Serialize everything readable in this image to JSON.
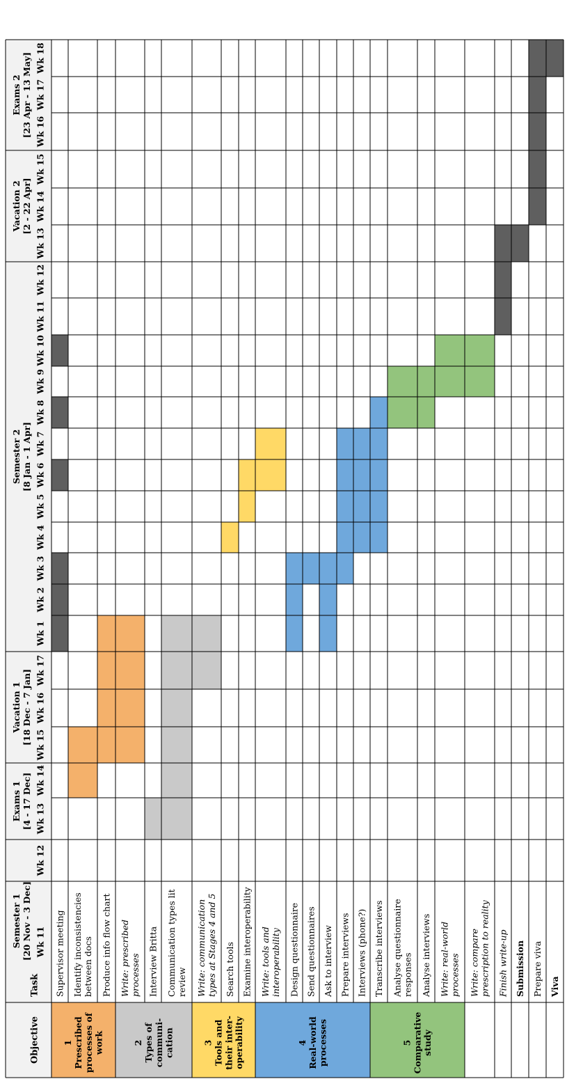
{
  "colors": {
    "line": "#000000",
    "header_bg": "#f2f2f2",
    "obj1": "#f4b16b",
    "obj2": "#c9c9c9",
    "obj3": "#ffd966",
    "obj4": "#6fa8dc",
    "obj5": "#93c47d",
    "milestone": "#5f5f5f"
  },
  "headers": {
    "objective": "Objective",
    "task": "Task"
  },
  "weeks": [
    "Wk 11",
    "Wk 12",
    "Wk 13",
    "Wk 14",
    "Wk 15",
    "Wk 16",
    "Wk 17",
    "Wk 1",
    "Wk 2",
    "Wk 3",
    "Wk 4",
    "Wk 5",
    "Wk 6",
    "Wk 7",
    "Wk 8",
    "Wk 9",
    "Wk 10",
    "Wk 11",
    "Wk 12",
    "Wk 13",
    "Wk 14",
    "Wk 15",
    "Wk 16",
    "Wk 17",
    "Wk 18"
  ],
  "periods": [
    {
      "name": "Semester 1",
      "dates": "[20 Nov - 3 Dec]",
      "start": 0,
      "end": 1
    },
    {
      "name": "Exams 1",
      "dates": "[4 - 17 Dec]",
      "start": 2,
      "end": 3
    },
    {
      "name": "Vacation 1",
      "dates": "[18 Dec - 7 Jan]",
      "start": 4,
      "end": 6
    },
    {
      "name": "Semester 2",
      "dates": "[8 Jan - 1 Apr]",
      "start": 7,
      "end": 18
    },
    {
      "name": "Vacation 2",
      "dates": "[2 - 22 Apr]",
      "start": 19,
      "end": 21
    },
    {
      "name": "Exams 2",
      "dates": "[23 Apr - 13 May]",
      "start": 22,
      "end": 24
    }
  ],
  "objectives": [
    {
      "number": "1",
      "lines": [
        "Prescribed",
        "processes of",
        "work"
      ],
      "color_key": "obj1",
      "start_row": 1,
      "end_row": 3
    },
    {
      "number": "2",
      "lines": [
        "Types of",
        "communi-",
        "cation"
      ],
      "color_key": "obj2",
      "start_row": 4,
      "end_row": 6
    },
    {
      "number": "3",
      "lines": [
        "Tools and",
        "their inter-",
        "operability"
      ],
      "color_key": "obj3",
      "start_row": 7,
      "end_row": 9
    },
    {
      "number": "4",
      "lines": [
        "Real-world",
        "processes"
      ],
      "color_key": "obj4",
      "start_row": 10,
      "end_row": 15
    },
    {
      "number": "5",
      "lines": [
        "Comparative",
        "study"
      ],
      "color_key": "obj5",
      "start_row": 16,
      "end_row": 19
    }
  ],
  "tasks": [
    {
      "lines": [
        "Supervisor meeting"
      ],
      "style": "normal",
      "color_key": "milestone",
      "weeks": [
        7,
        8,
        9,
        12,
        14,
        16
      ]
    },
    {
      "lines": [
        "Identify inconsistencies",
        "between docs"
      ],
      "style": "normal",
      "color_key": "obj1",
      "weeks": [
        3,
        4
      ]
    },
    {
      "lines": [
        "Produce info flow chart"
      ],
      "style": "normal",
      "color_key": "obj1",
      "weeks": [
        4,
        5,
        6,
        7
      ]
    },
    {
      "lines": [
        "Write: prescribed",
        "processes"
      ],
      "style": "italic",
      "color_key": "obj1",
      "weeks": [
        4,
        5,
        6,
        7
      ]
    },
    {
      "lines": [
        "Interview Britta"
      ],
      "style": "normal",
      "color_key": "obj2",
      "weeks": [
        2
      ]
    },
    {
      "lines": [
        "Communication types lit",
        "review"
      ],
      "style": "normal",
      "color_key": "obj2",
      "weeks": [
        2,
        3,
        4,
        5,
        6,
        7
      ]
    },
    {
      "lines": [
        "Write: communication",
        "types at Stages 4 and 5"
      ],
      "style": "italic",
      "color_key": "obj2",
      "weeks": [
        6,
        7
      ]
    },
    {
      "lines": [
        "Search tools"
      ],
      "style": "normal",
      "color_key": "obj3",
      "weeks": [
        10
      ]
    },
    {
      "lines": [
        "Examine interoperability"
      ],
      "style": "normal",
      "color_key": "obj3",
      "weeks": [
        11,
        12
      ]
    },
    {
      "lines": [
        "Write: tools and",
        "interoperability"
      ],
      "style": "italic",
      "color_key": "obj3",
      "weeks": [
        12,
        13
      ]
    },
    {
      "lines": [
        "Design questionnaire"
      ],
      "style": "normal",
      "color_key": "obj4",
      "weeks": [
        7,
        8,
        9
      ]
    },
    {
      "lines": [
        "Send questionnaires"
      ],
      "style": "normal",
      "color_key": "obj4",
      "weeks": [
        9
      ]
    },
    {
      "lines": [
        "Ask to interview"
      ],
      "style": "normal",
      "color_key": "obj4",
      "weeks": [
        7,
        8,
        9
      ]
    },
    {
      "lines": [
        "Prepare interviews"
      ],
      "style": "normal",
      "color_key": "obj4",
      "weeks": [
        9,
        10,
        11,
        12,
        13
      ]
    },
    {
      "lines": [
        "Interviews (phone?)"
      ],
      "style": "normal",
      "color_key": "obj4",
      "weeks": [
        10,
        11,
        12,
        13
      ]
    },
    {
      "lines": [
        "Transcribe interviews"
      ],
      "style": "normal",
      "color_key": "obj4",
      "weeks": [
        10,
        11,
        12,
        13,
        14
      ]
    },
    {
      "lines": [
        "Analyse questionnaire",
        "responses"
      ],
      "style": "normal",
      "color_key": "obj5",
      "weeks": [
        14,
        15
      ]
    },
    {
      "lines": [
        "Analyse interviews"
      ],
      "style": "normal",
      "color_key": "obj5",
      "weeks": [
        14,
        15
      ]
    },
    {
      "lines": [
        "Write: real-world",
        "processes"
      ],
      "style": "italic",
      "color_key": "obj5",
      "weeks": [
        15,
        16
      ]
    },
    {
      "lines": [
        "Write: compare",
        "prescription to reality"
      ],
      "style": "italic",
      "color_key": "obj5",
      "weeks": [
        15,
        16
      ]
    },
    {
      "lines": [
        "Finish write-up"
      ],
      "style": "italic",
      "color_key": "milestone",
      "weeks": [
        17,
        18,
        19
      ]
    },
    {
      "lines": [
        "Submission"
      ],
      "style": "bold",
      "color_key": "milestone",
      "weeks": [
        19
      ]
    },
    {
      "lines": [
        "Prepare viva"
      ],
      "style": "normal",
      "color_key": "milestone",
      "weeks": [
        20,
        21,
        22,
        23,
        24
      ]
    },
    {
      "lines": [
        "Viva"
      ],
      "style": "bold",
      "color_key": "milestone",
      "weeks": [
        24
      ]
    }
  ]
}
